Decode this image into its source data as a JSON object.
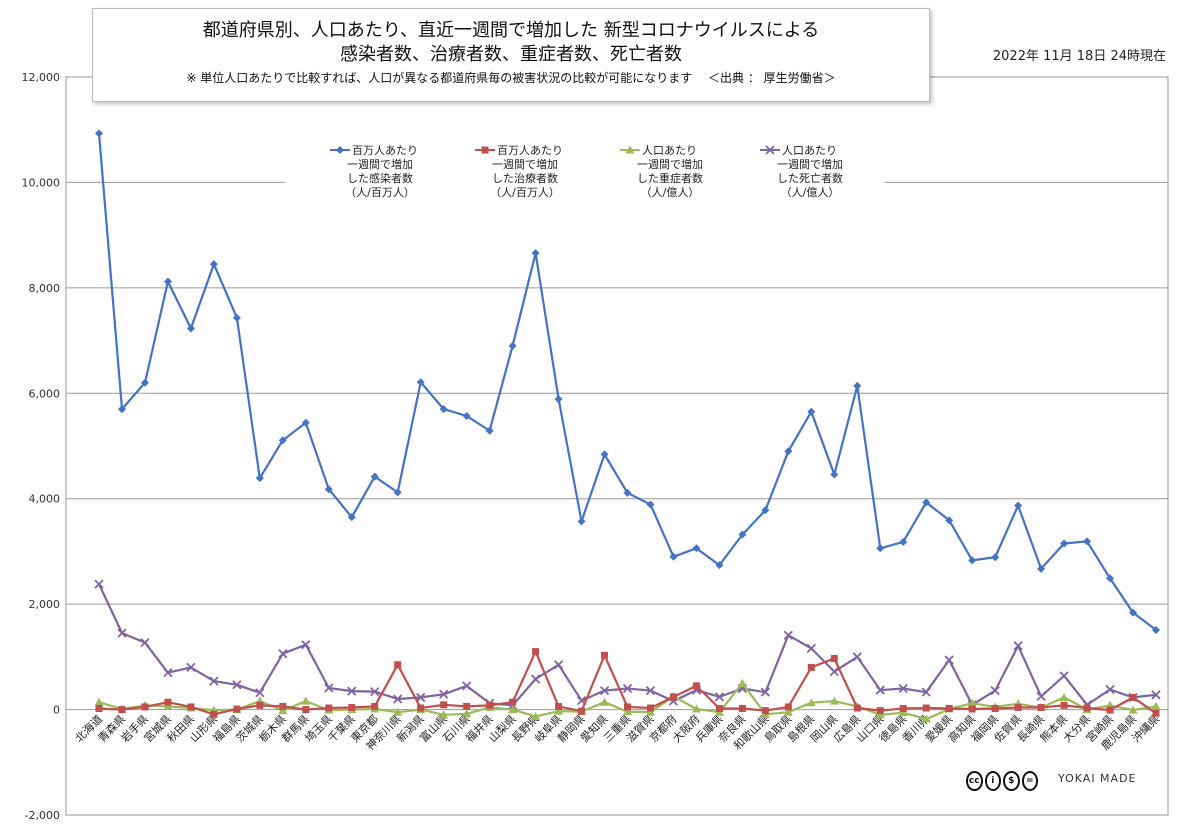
{
  "header": {
    "title_line1": "都道府県別、人口あたり、直近一週間で増加した 新型コロナウイルスによる",
    "title_line2": "感染者数、治療者数、重症者数、死亡者数",
    "subtitle": "※ 単位人口あたりで比較すれば、人口が異なる都道府県毎の被害状況の比較が可能になります　 ＜出典 ： 厚生労働省＞",
    "date": "2022年 11月 18日 24時現在"
  },
  "logos": {
    "brand_text": "YOKAI MADE",
    "cc_icons": [
      "cc-icon",
      "by-icon",
      "nc-icon",
      "nd-icon"
    ]
  },
  "chart_data": {
    "type": "line",
    "ylim": [
      -2000,
      12000
    ],
    "yticks": [
      "-2,000",
      "0",
      "2,000",
      "4,000",
      "6,000",
      "8,000",
      "10,000",
      "12,000"
    ],
    "grid": true,
    "legend_position": "top-center",
    "categories": [
      "北海道",
      "青森県",
      "岩手県",
      "宮城県",
      "秋田県",
      "山形県",
      "福島県",
      "茨城県",
      "栃木県",
      "群馬県",
      "埼玉県",
      "千葉県",
      "東京都",
      "神奈川県",
      "新潟県",
      "富山県",
      "石川県",
      "福井県",
      "山梨県",
      "長野県",
      "岐阜県",
      "静岡県",
      "愛知県",
      "三重県",
      "滋賀県",
      "京都府",
      "大阪府",
      "兵庫県",
      "奈良県",
      "和歌山県",
      "鳥取県",
      "島根県",
      "岡山県",
      "広島県",
      "山口県",
      "徳島県",
      "香川県",
      "愛媛県",
      "高知県",
      "福岡県",
      "佐賀県",
      "長崎県",
      "熊本県",
      "大分県",
      "宮崎県",
      "鹿児島県",
      "沖縄県"
    ],
    "series": [
      {
        "name": "百万人あたり一週間で増加した感染者数（人/百万人）",
        "legend_lines": [
          "百万人あたり",
          "一週間で増加",
          "した感染者数",
          "（人/百万人）"
        ],
        "color": "#4472c4",
        "marker": "diamond",
        "values": [
          10930,
          5700,
          6200,
          8120,
          7230,
          8450,
          7430,
          4390,
          5110,
          5440,
          4180,
          3650,
          4420,
          4120,
          6210,
          5700,
          5570,
          5290,
          6900,
          8660,
          5890,
          3570,
          4840,
          4110,
          3890,
          2900,
          3060,
          2740,
          3320,
          3780,
          4900,
          5650,
          4460,
          6140,
          3060,
          3180,
          3930,
          3590,
          2830,
          2890,
          3870,
          2670,
          3150,
          3190,
          2490,
          1840,
          1510
        ]
      },
      {
        "name": "百万人あたり一週間で増加した治療者数（人/百万人）",
        "legend_lines": [
          "百万人あたり",
          "一週間で増加",
          "した治療者数",
          "（人/百万人）"
        ],
        "color": "#c0504d",
        "marker": "square",
        "values": [
          20,
          0,
          50,
          140,
          50,
          -90,
          10,
          80,
          60,
          0,
          30,
          40,
          60,
          850,
          30,
          90,
          60,
          80,
          140,
          1100,
          60,
          -30,
          1030,
          50,
          30,
          240,
          450,
          20,
          20,
          -20,
          50,
          800,
          970,
          30,
          -20,
          20,
          30,
          20,
          10,
          20,
          40,
          40,
          80,
          30,
          -10,
          230,
          -70
        ]
      },
      {
        "name": "人口あたり一週間で増加した重症者数（人/億人）",
        "legend_lines": [
          "人口あたり",
          "一週間で増加",
          "した重症者数",
          "（人/億人）"
        ],
        "color": "#9bbb59",
        "marker": "triangle",
        "values": [
          140,
          10,
          80,
          60,
          30,
          -10,
          0,
          160,
          -20,
          160,
          -10,
          0,
          10,
          -50,
          0,
          -100,
          -80,
          40,
          0,
          -130,
          -30,
          -40,
          140,
          -40,
          -50,
          250,
          10,
          -50,
          500,
          -90,
          -50,
          130,
          160,
          60,
          -100,
          -60,
          -180,
          10,
          120,
          50,
          110,
          40,
          230,
          0,
          80,
          -10,
          60
        ]
      },
      {
        "name": "人口あたり一週間で増加した死亡者数（人/億人）",
        "legend_lines": [
          "人口あたり",
          "一週間で増加",
          "した死亡者数",
          "（人/億人）"
        ],
        "color": "#8064a2",
        "marker": "x",
        "values": [
          2380,
          1450,
          1270,
          700,
          800,
          540,
          470,
          320,
          1060,
          1230,
          410,
          350,
          340,
          200,
          230,
          290,
          450,
          120,
          80,
          580,
          850,
          170,
          360,
          400,
          360,
          160,
          370,
          240,
          400,
          330,
          1410,
          1160,
          720,
          1000,
          370,
          400,
          330,
          940,
          90,
          360,
          1210,
          250,
          640,
          90,
          380,
          230,
          280
        ]
      }
    ]
  }
}
